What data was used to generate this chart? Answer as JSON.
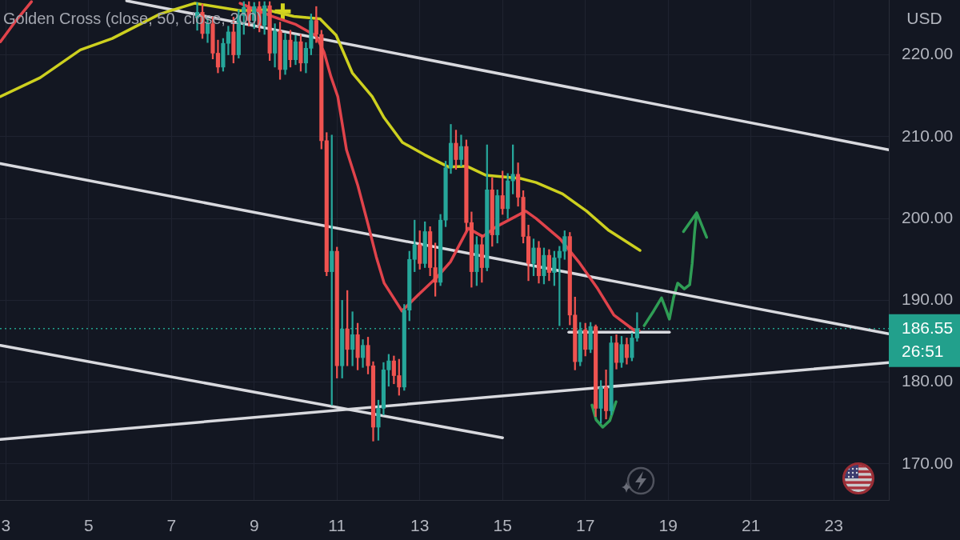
{
  "chart_data": {
    "type": "candlestick",
    "title": "Golden Cross (close, 50, close, 200)",
    "ylabel": "USD",
    "xlim": [
      2.86,
      24.33
    ],
    "ylim": [
      165.6,
      226.7
    ],
    "xticks": [
      3,
      5,
      7,
      9,
      11,
      13,
      15,
      17,
      19,
      21,
      23
    ],
    "yticks": [
      {
        "value": 170,
        "label": "170.00"
      },
      {
        "value": 180,
        "label": "180.00"
      },
      {
        "value": 190,
        "label": "190.00"
      },
      {
        "value": 200,
        "label": "200.00"
      },
      {
        "value": 210,
        "label": "210.00"
      },
      {
        "value": 220,
        "label": "220.00"
      }
    ],
    "grid": true,
    "ref_lines": [
      {
        "axis": "y",
        "value": 186.55,
        "label": "186.55",
        "color": "#22a08c",
        "line_style": "dotted"
      }
    ],
    "annotations": [
      "26:51"
    ],
    "series": [
      {
        "x": [
          7.625,
          7.75,
          7.875,
          8,
          8.125,
          8.25,
          8.375,
          8.5,
          8.625,
          8.75,
          8.875,
          9,
          9.125,
          9.25,
          9.375,
          9.5,
          9.625,
          9.75,
          9.875,
          10,
          10.125,
          10.25,
          10.375,
          10.5,
          10.625,
          10.75,
          10.875,
          11,
          11.125,
          11.25,
          11.375,
          11.5,
          11.625,
          11.75,
          11.875,
          12,
          12.125,
          12.25,
          12.375,
          12.5,
          12.625,
          12.75,
          12.875,
          13,
          13.125,
          13.25,
          13.375,
          13.5,
          13.625,
          13.75,
          13.875,
          14,
          14.125,
          14.25,
          14.375,
          14.5,
          14.625,
          14.75,
          14.875,
          15,
          15.125,
          15.25,
          15.375,
          15.5,
          15.625,
          15.75,
          15.875,
          16,
          16.125,
          16.25,
          16.375,
          16.5,
          16.625,
          16.75,
          16.875,
          17,
          17.125,
          17.25,
          17.375,
          17.5,
          17.625,
          17.75,
          17.875,
          18,
          18.125,
          18.25
        ],
        "ohlc": [
          [
            224.5,
            226.4,
            223.0,
            225.2
          ],
          [
            225.2,
            226.2,
            222.0,
            222.6
          ],
          [
            222.6,
            224.5,
            221.5,
            223.8
          ],
          [
            223.8,
            224.6,
            219.5,
            220.2
          ],
          [
            220.2,
            221.8,
            217.8,
            218.5
          ],
          [
            218.5,
            222.0,
            218.0,
            221.4
          ],
          [
            221.4,
            223.5,
            220.0,
            222.8
          ],
          [
            222.8,
            224.6,
            219.0,
            220.0
          ],
          [
            220.0,
            225.5,
            219.6,
            224.8
          ],
          [
            224.8,
            226.5,
            222.5,
            225.8
          ],
          [
            225.8,
            226.5,
            223.5,
            224.2
          ],
          [
            224.2,
            226.4,
            223.2,
            225.9
          ],
          [
            225.9,
            226.5,
            222.8,
            223.6
          ],
          [
            223.6,
            226.5,
            222.5,
            226.0
          ],
          [
            226.0,
            226.5,
            219.3,
            220.2
          ],
          [
            220.2,
            223.8,
            218.5,
            222.9
          ],
          [
            222.9,
            224.0,
            217.0,
            218.2
          ],
          [
            218.2,
            222.6,
            217.6,
            221.8
          ],
          [
            221.8,
            223.0,
            218.5,
            219.4
          ],
          [
            219.4,
            222.4,
            218.8,
            221.6
          ],
          [
            221.6,
            222.5,
            218.0,
            219.0
          ],
          [
            219.0,
            221.5,
            217.8,
            220.8
          ],
          [
            220.8,
            225.0,
            220.0,
            224.2
          ],
          [
            224.2,
            225.9,
            221.5,
            222.5
          ],
          [
            222.5,
            223.0,
            208.5,
            209.5
          ],
          [
            209.5,
            210.5,
            193.0,
            193.5
          ],
          [
            193.5,
            210.2,
            177.2,
            196.0
          ],
          [
            196.0,
            196.5,
            180.5,
            182.0
          ],
          [
            182.0,
            190.0,
            180.5,
            186.5
          ],
          [
            186.5,
            191.2,
            182.0,
            184.0
          ],
          [
            184.0,
            188.6,
            182.0,
            185.8
          ],
          [
            185.8,
            187.2,
            181.5,
            183.0
          ],
          [
            183.0,
            185.2,
            181.8,
            184.5
          ],
          [
            184.5,
            185.5,
            181.0,
            182.0
          ],
          [
            182.0,
            182.5,
            172.8,
            174.5
          ],
          [
            174.5,
            177.8,
            172.9,
            176.8
          ],
          [
            176.8,
            182.4,
            176.0,
            181.5
          ],
          [
            181.5,
            183.4,
            179.5,
            182.6
          ],
          [
            182.6,
            183.2,
            179.8,
            180.8
          ],
          [
            180.8,
            182.8,
            178.4,
            179.4
          ],
          [
            179.4,
            189.5,
            179.0,
            188.8
          ],
          [
            188.8,
            196.0,
            187.5,
            195.0
          ],
          [
            195.0,
            199.8,
            193.5,
            196.8
          ],
          [
            196.8,
            198.5,
            193.8,
            194.5
          ],
          [
            194.5,
            199.6,
            194.0,
            198.4
          ],
          [
            198.4,
            199.0,
            193.0,
            194.0
          ],
          [
            194.0,
            197.0,
            190.5,
            192.2
          ],
          [
            192.2,
            200.5,
            191.8,
            199.8
          ],
          [
            199.8,
            207.0,
            199.0,
            206.2
          ],
          [
            206.2,
            211.5,
            205.5,
            209.2
          ],
          [
            209.2,
            210.8,
            206.0,
            207.2
          ],
          [
            207.2,
            210.2,
            206.4,
            208.8
          ],
          [
            208.8,
            209.6,
            198.5,
            199.5
          ],
          [
            199.5,
            200.8,
            191.6,
            193.5
          ],
          [
            193.5,
            197.8,
            191.8,
            196.8
          ],
          [
            196.8,
            198.0,
            192.2,
            194.0
          ],
          [
            194.0,
            209.0,
            193.6,
            203.5
          ],
          [
            203.5,
            205.0,
            196.6,
            198.0
          ],
          [
            198.0,
            203.5,
            197.0,
            202.8
          ],
          [
            202.8,
            205.8,
            200.5,
            201.2
          ],
          [
            201.2,
            205.5,
            200.0,
            204.6
          ],
          [
            204.6,
            209.0,
            203.0,
            205.4
          ],
          [
            205.4,
            206.8,
            201.5,
            202.6
          ],
          [
            202.6,
            203.4,
            197.0,
            197.8
          ],
          [
            197.8,
            199.2,
            192.4,
            194.5
          ],
          [
            194.5,
            197.5,
            193.0,
            196.4
          ],
          [
            196.4,
            197.2,
            192.1,
            193.0
          ],
          [
            193.0,
            196.4,
            192.0,
            195.5
          ],
          [
            195.5,
            196.2,
            192.4,
            193.4
          ],
          [
            193.4,
            196.0,
            191.8,
            195.2
          ],
          [
            195.2,
            196.6,
            186.9,
            196.0
          ],
          [
            196.0,
            198.5,
            195.0,
            197.8
          ],
          [
            197.8,
            198.3,
            187.0,
            188.2
          ],
          [
            188.2,
            190.4,
            181.5,
            182.5
          ],
          [
            182.5,
            187.3,
            182.0,
            186.4
          ],
          [
            186.4,
            187.2,
            183.2,
            184.0
          ],
          [
            184.0,
            187.3,
            183.6,
            186.8
          ],
          [
            186.8,
            187.0,
            175.8,
            176.8
          ],
          [
            176.8,
            180.2,
            175.0,
            179.4
          ],
          [
            179.4,
            181.5,
            175.5,
            176.5
          ],
          [
            176.5,
            185.6,
            176.0,
            184.8
          ],
          [
            184.8,
            185.8,
            181.6,
            182.4
          ],
          [
            182.4,
            185.6,
            181.8,
            184.6
          ],
          [
            184.6,
            185.4,
            182.2,
            183.0
          ],
          [
            183.0,
            186.0,
            182.6,
            185.4
          ],
          [
            185.4,
            188.5,
            185.0,
            186.55
          ]
        ],
        "colors": [
          "#26a69a",
          "#ef5350",
          "#26a69a",
          "#ef5350",
          "#ef5350",
          "#26a69a",
          "#26a69a",
          "#ef5350",
          "#26a69a",
          "#26a69a",
          "#ef5350",
          "#26a69a",
          "#ef5350",
          "#26a69a",
          "#ef5350",
          "#26a69a",
          "#ef5350",
          "#26a69a",
          "#ef5350",
          "#26a69a",
          "#ef5350",
          "#26a69a",
          "#26a69a",
          "#ef5350",
          "#ef5350",
          "#ef5350",
          "#26a69a",
          "#ef5350",
          "#26a69a",
          "#ef5350",
          "#26a69a",
          "#ef5350",
          "#26a69a",
          "#ef5350",
          "#ef5350",
          "#26a69a",
          "#26a69a",
          "#26a69a",
          "#ef5350",
          "#ef5350",
          "#26a69a",
          "#26a69a",
          "#26a69a",
          "#ef5350",
          "#26a69a",
          "#ef5350",
          "#ef5350",
          "#26a69a",
          "#26a69a",
          "#26a69a",
          "#ef5350",
          "#26a69a",
          "#ef5350",
          "#ef5350",
          "#26a69a",
          "#ef5350",
          "#26a69a",
          "#ef5350",
          "#26a69a",
          "#ef5350",
          "#26a69a",
          "#26a69a",
          "#ef5350",
          "#ef5350",
          "#ef5350",
          "#26a69a",
          "#ef5350",
          "#26a69a",
          "#ef5350",
          "#26a69a",
          "#26a69a",
          "#26a69a",
          "#ef5350",
          "#ef5350",
          "#26a69a",
          "#ef5350",
          "#26a69a",
          "#ef5350",
          "#26a69a",
          "#ef5350",
          "#26a69a",
          "#ef5350",
          "#26a69a",
          "#ef5350",
          "#26a69a",
          "#26a69a"
        ]
      },
      {
        "type": "line",
        "color": "#e0434b",
        "x": [
          2.87,
          3.25,
          3.62,
          6,
          8.66,
          9.43,
          10.01,
          10.5,
          10.69,
          10.85,
          11.02,
          11.23,
          11.5,
          11.75,
          11.95,
          12.14,
          12.57,
          12.97,
          13.43,
          13.74,
          14.17,
          14.52,
          14.85,
          15.56,
          15.81,
          16.39,
          16.84,
          17.3,
          17.69,
          18.19,
          18.3
        ],
        "values": [
          221.6,
          224.2,
          226.5,
          null,
          226.3,
          224.7,
          223.7,
          222.3,
          220.3,
          217.4,
          214.9,
          208.4,
          204.1,
          199.3,
          195.3,
          192.1,
          188.7,
          190.7,
          192.9,
          194.7,
          198.8,
          197.8,
          199.0,
          200.9,
          200.0,
          197.5,
          194.7,
          191.4,
          188.2,
          186.3,
          186.3
        ]
      },
      {
        "type": "line",
        "color": "#cdd01f",
        "x": [
          2.87,
          3.83,
          4.8,
          5.57,
          6.73,
          7.56,
          8.66,
          9.3,
          9.96,
          10.59,
          10.98,
          11.37,
          11.85,
          12.14,
          12.58,
          13.11,
          13.69,
          14.13,
          14.59,
          15.43,
          15.81,
          16.45,
          17.03,
          17.55,
          18.32
        ],
        "values": [
          214.9,
          217.2,
          220.6,
          222.0,
          225.0,
          226.3,
          225.4,
          225.5,
          224.7,
          224.4,
          222.4,
          217.8,
          214.9,
          212.3,
          209.3,
          207.8,
          206.3,
          206.4,
          205.3,
          204.9,
          204.4,
          203.0,
          200.9,
          198.6,
          196.1
        ]
      },
      {
        "type": "line",
        "color": "#d8d9de",
        "x": [
          5.92,
          24.33
        ],
        "values": [
          226.6,
          208.4
        ]
      },
      {
        "type": "line",
        "color": "#d8d9de",
        "x": [
          2.87,
          24.33
        ],
        "values": [
          206.7,
          185.9
        ]
      },
      {
        "type": "line",
        "color": "#d8d9de",
        "x": [
          2.87,
          15.0
        ],
        "values": [
          184.5,
          173.2
        ]
      },
      {
        "type": "line",
        "color": "#d8d9de",
        "x": [
          2.87,
          24.33
        ],
        "values": [
          173.0,
          182.4
        ]
      },
      {
        "type": "line",
        "color": "#d8d9de",
        "x": [
          16.6,
          19.03
        ],
        "values": [
          186.1,
          186.1
        ]
      },
      {
        "type": "line",
        "color": "#2f9d55",
        "x": [
          18.42,
          18.65,
          18.84,
          18.96,
          19.03,
          19.13,
          19.23,
          19.39,
          19.52,
          19.58,
          19.64,
          19.69,
          19.37,
          19.69,
          19.93
        ],
        "values": [
          186.9,
          188.7,
          190.3,
          188.7,
          187.7,
          190.3,
          192.1,
          191.4,
          191.9,
          194.5,
          198.4,
          200.7,
          198.4,
          200.7,
          197.7
        ]
      },
      {
        "type": "line",
        "color": "#2f9d55",
        "x": [
          17.16,
          17.26,
          17.42,
          17.59,
          17.74
        ],
        "values": [
          177.2,
          175.4,
          174.5,
          175.3,
          177.6
        ]
      },
      {
        "type": "scatter",
        "marker": "cross",
        "color": "#d4d61e",
        "x": [
          9.69
        ],
        "values": [
          225.3
        ]
      }
    ]
  }
}
